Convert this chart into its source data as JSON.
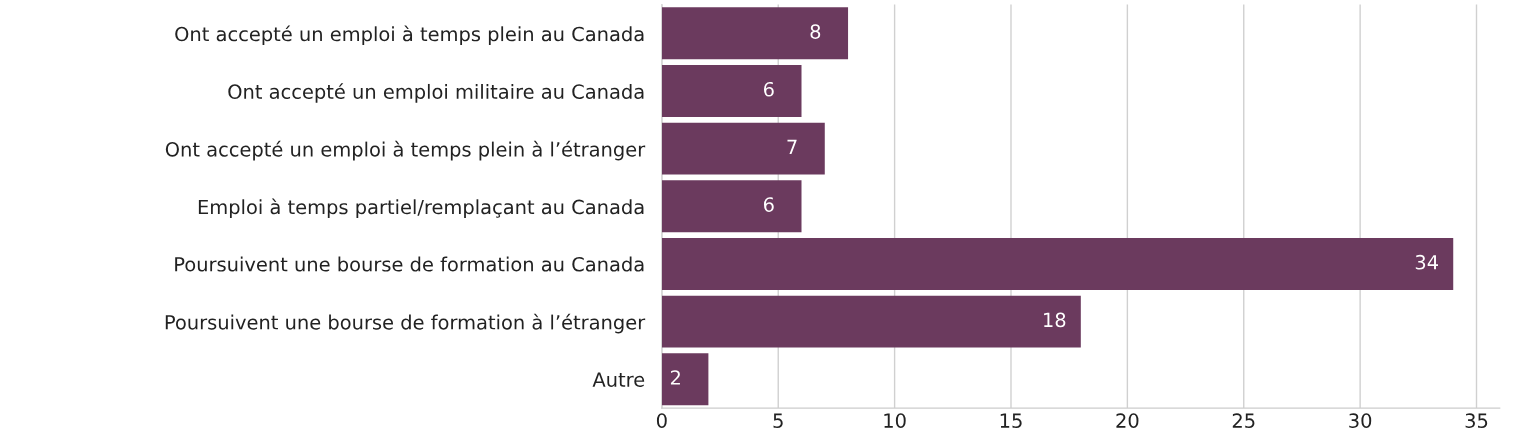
{
  "chart_data": {
    "type": "bar",
    "orientation": "horizontal",
    "categories": [
      "Ont accepté un emploi à temps plein au Canada",
      "Ont accepté un emploi militaire au Canada",
      "Ont accepté un emploi à temps plein à l’étranger",
      "Emploi à temps partiel/remplaçant au Canada",
      "Poursuivent une bourse de formation au Canada",
      "Poursuivent une bourse de formation à l’étranger",
      "Autre"
    ],
    "values": [
      8,
      6,
      7,
      6,
      34,
      18,
      2
    ],
    "color": "#6b3a5e",
    "xlim": [
      0,
      36
    ],
    "xticks": [
      0,
      5,
      10,
      15,
      20,
      25,
      30,
      35
    ],
    "grid": "x",
    "data_labels": true
  }
}
